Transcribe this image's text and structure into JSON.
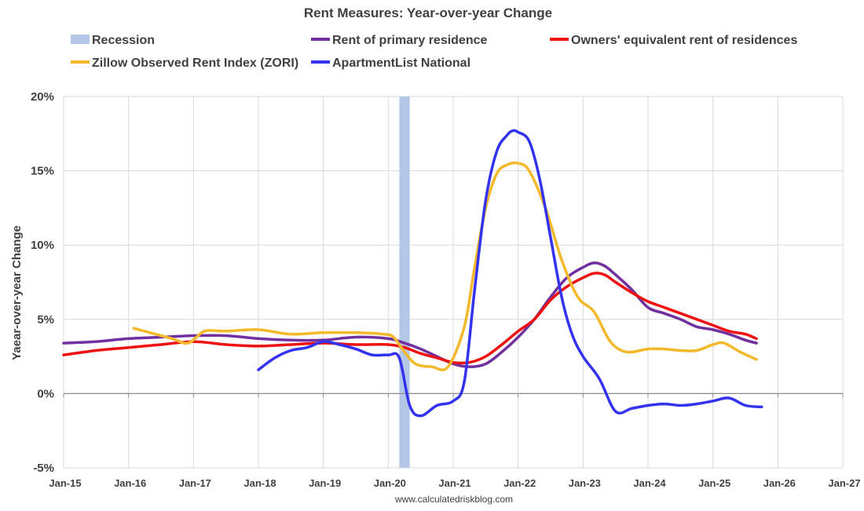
{
  "chart_data": {
    "type": "line",
    "title": "Rent Measures: Year-over-year Change",
    "ylabel": "Yaear-over-year Change",
    "xlabel": "",
    "credit": "www.calculatedriskblog.com",
    "ylim": [
      -5,
      20
    ],
    "yticks": [
      -5,
      0,
      5,
      10,
      15,
      20
    ],
    "ytick_labels": [
      "-5%",
      "0%",
      "5%",
      "10%",
      "15%",
      "20%"
    ],
    "xlim": [
      2015.0,
      2027.0
    ],
    "xticks": [
      2015,
      2016,
      2017,
      2018,
      2019,
      2020,
      2021,
      2022,
      2023,
      2024,
      2025,
      2026,
      2027
    ],
    "xtick_labels": [
      "Jan-15",
      "Jan-16",
      "Jan-17",
      "Jan-18",
      "Jan-19",
      "Jan-20",
      "Jan-21",
      "Jan-22",
      "Jan-23",
      "Jan-24",
      "Jan-25",
      "Jan-26",
      "Jan-27"
    ],
    "grid": true,
    "legend_position": "top",
    "recession": {
      "name": "Recession",
      "start": 2020.17,
      "end": 2020.33,
      "color": "#b4c7e7"
    },
    "series": [
      {
        "name": "Rent of primary residence",
        "color": "#7030a0",
        "x": [
          2015.0,
          2015.5,
          2016.0,
          2016.5,
          2017.0,
          2017.5,
          2018.0,
          2018.5,
          2019.0,
          2019.5,
          2020.0,
          2020.25,
          2020.5,
          2020.75,
          2021.0,
          2021.25,
          2021.5,
          2021.75,
          2022.0,
          2022.25,
          2022.5,
          2022.75,
          2023.0,
          2023.17,
          2023.33,
          2023.5,
          2023.75,
          2024.0,
          2024.25,
          2024.5,
          2024.75,
          2025.0,
          2025.25,
          2025.5,
          2025.67
        ],
        "values": [
          3.4,
          3.5,
          3.7,
          3.8,
          3.9,
          3.9,
          3.7,
          3.6,
          3.6,
          3.8,
          3.7,
          3.4,
          3.0,
          2.5,
          2.0,
          1.8,
          2.0,
          2.8,
          3.8,
          5.0,
          6.5,
          7.8,
          8.5,
          8.8,
          8.6,
          8.0,
          7.0,
          5.8,
          5.4,
          5.0,
          4.5,
          4.3,
          4.0,
          3.6,
          3.4
        ]
      },
      {
        "name": "Owners' equivalent rent of residences",
        "color": "#ee1111",
        "x": [
          2015.0,
          2015.5,
          2016.0,
          2016.5,
          2017.0,
          2017.5,
          2018.0,
          2018.5,
          2019.0,
          2019.5,
          2020.0,
          2020.25,
          2020.5,
          2020.75,
          2021.0,
          2021.25,
          2021.5,
          2021.75,
          2022.0,
          2022.25,
          2022.5,
          2022.75,
          2023.0,
          2023.17,
          2023.33,
          2023.5,
          2023.75,
          2024.0,
          2024.25,
          2024.5,
          2024.75,
          2025.0,
          2025.25,
          2025.5,
          2025.67
        ],
        "values": [
          2.6,
          2.9,
          3.1,
          3.3,
          3.5,
          3.3,
          3.2,
          3.3,
          3.4,
          3.3,
          3.3,
          3.1,
          2.7,
          2.4,
          2.1,
          2.1,
          2.5,
          3.3,
          4.2,
          5.0,
          6.3,
          7.2,
          7.8,
          8.1,
          8.0,
          7.5,
          6.8,
          6.2,
          5.8,
          5.4,
          5.0,
          4.6,
          4.2,
          4.0,
          3.7
        ]
      },
      {
        "name": "Zillow Observed Rent Index (ZORI)",
        "color": "#f4b92a",
        "x": [
          2016.08,
          2016.33,
          2016.67,
          2016.92,
          2017.17,
          2017.5,
          2018.0,
          2018.5,
          2019.0,
          2019.5,
          2019.92,
          2020.08,
          2020.25,
          2020.42,
          2020.67,
          2020.92,
          2021.17,
          2021.33,
          2021.5,
          2021.67,
          2021.83,
          2022.0,
          2022.17,
          2022.42,
          2022.67,
          2022.92,
          2023.17,
          2023.42,
          2023.67,
          2024.0,
          2024.25,
          2024.5,
          2024.75,
          2025.0,
          2025.17,
          2025.42,
          2025.67
        ],
        "values": [
          4.4,
          4.1,
          3.7,
          3.4,
          4.2,
          4.2,
          4.3,
          4.0,
          4.1,
          4.1,
          4.0,
          3.8,
          2.8,
          2.0,
          1.8,
          1.8,
          4.5,
          8.5,
          12.5,
          14.8,
          15.4,
          15.5,
          15.0,
          12.5,
          9.0,
          6.5,
          5.5,
          3.5,
          2.8,
          3.0,
          3.0,
          2.9,
          2.9,
          3.3,
          3.4,
          2.8,
          2.3
        ]
      },
      {
        "name": "ApartmentList National",
        "color": "#3333ee",
        "x": [
          2018.0,
          2018.25,
          2018.5,
          2018.75,
          2019.0,
          2019.25,
          2019.5,
          2019.75,
          2020.0,
          2020.17,
          2020.33,
          2020.5,
          2020.75,
          2021.0,
          2021.17,
          2021.33,
          2021.5,
          2021.67,
          2021.83,
          2021.92,
          2022.0,
          2022.17,
          2022.33,
          2022.5,
          2022.67,
          2022.83,
          2023.0,
          2023.25,
          2023.5,
          2023.75,
          2024.0,
          2024.25,
          2024.5,
          2024.75,
          2025.0,
          2025.25,
          2025.5,
          2025.75
        ],
        "values": [
          1.6,
          2.4,
          2.9,
          3.1,
          3.5,
          3.3,
          3.0,
          2.6,
          2.6,
          2.4,
          -0.8,
          -1.5,
          -0.8,
          -0.5,
          0.8,
          7.0,
          13.0,
          16.3,
          17.4,
          17.7,
          17.6,
          17.0,
          14.5,
          10.5,
          6.5,
          4.0,
          2.5,
          1.0,
          -1.2,
          -1.0,
          -0.8,
          -0.7,
          -0.8,
          -0.7,
          -0.5,
          -0.3,
          -0.8,
          -0.9
        ]
      }
    ]
  }
}
